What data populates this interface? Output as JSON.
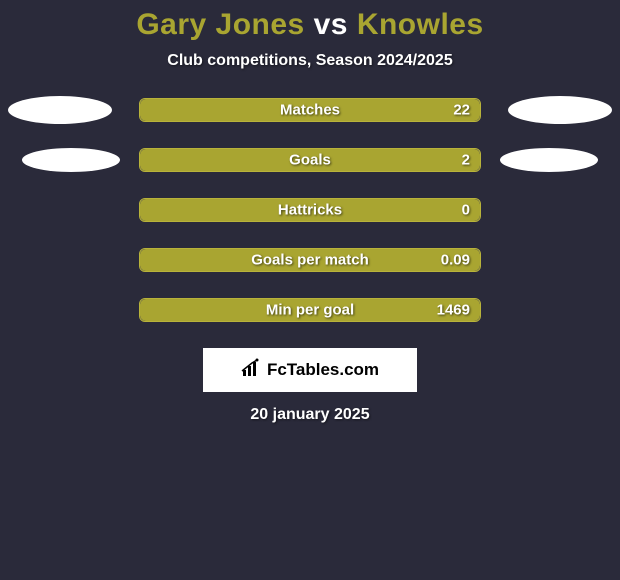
{
  "title": {
    "player1": "Gary Jones",
    "vs": "vs",
    "player2": "Knowles",
    "player1_color": "#a9a531",
    "vs_color": "#ffffff",
    "player2_color": "#a9a531"
  },
  "subtitle": "Club competitions, Season 2024/2025",
  "background_color": "#2a2a3a",
  "bar_track_color": "#3a3a4e",
  "bar_fill_color": "#a9a531",
  "bar_border_color": "#b8b33a",
  "avatar_color": "#ffffff",
  "text_color": "#ffffff",
  "stats": [
    {
      "label": "Matches",
      "value": "22",
      "fill_pct": 100,
      "show_avatars": true
    },
    {
      "label": "Goals",
      "value": "2",
      "fill_pct": 100,
      "show_avatars": true,
      "avatar_narrow": true
    },
    {
      "label": "Hattricks",
      "value": "0",
      "fill_pct": 100,
      "show_avatars": false
    },
    {
      "label": "Goals per match",
      "value": "0.09",
      "fill_pct": 100,
      "show_avatars": false
    },
    {
      "label": "Min per goal",
      "value": "1469",
      "fill_pct": 100,
      "show_avatars": false
    }
  ],
  "logo": {
    "text": "FcTables.com",
    "icon_name": "bar-chart-icon"
  },
  "date": "20 january 2025"
}
